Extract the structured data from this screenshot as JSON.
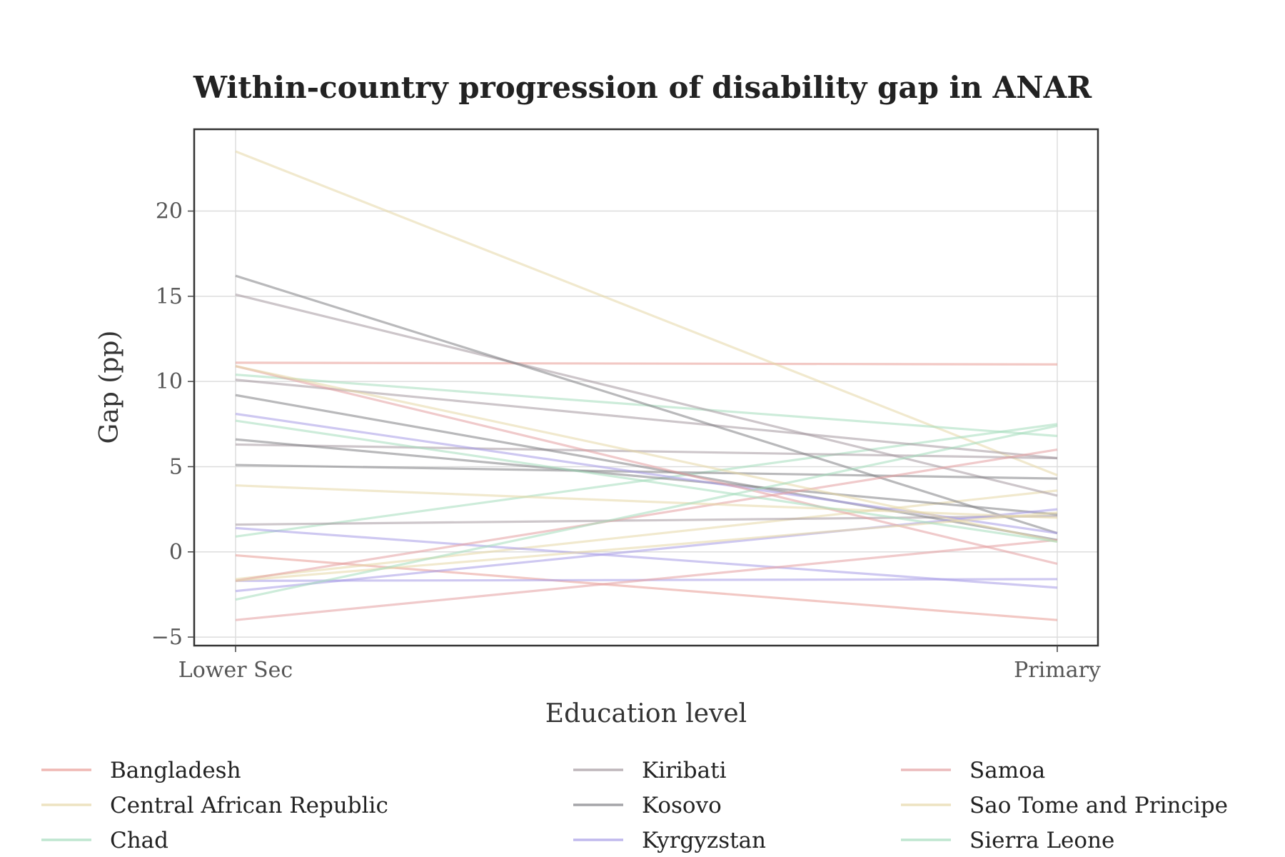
{
  "chart_data": {
    "type": "line",
    "title": "Within-country progression of disability gap in ANAR",
    "xlabel": "Education level",
    "ylabel": "Gap (pp)",
    "categories": [
      "Lower Sec",
      "Primary"
    ],
    "ylim": [
      -5.5,
      24.8
    ],
    "yticks": [
      -5,
      0,
      5,
      10,
      15,
      20
    ],
    "ytick_labels": [
      "−5",
      "0",
      "5",
      "10",
      "15",
      "20"
    ],
    "grid": true,
    "legend_position": "bottom",
    "legend_columns": 3,
    "series": [
      {
        "name": "Bangladesh",
        "color": "#e89a94",
        "lines": [
          [
            11.1,
            11.0
          ],
          [
            -0.2,
            -4.0
          ]
        ]
      },
      {
        "name": "Central African Republic",
        "color": "#e6d7a6",
        "lines": [
          [
            23.5,
            4.5
          ],
          [
            -1.6,
            3.6
          ]
        ]
      },
      {
        "name": "Chad",
        "color": "#a4dcbc",
        "lines": [
          [
            10.4,
            6.8
          ],
          [
            0.9,
            7.5
          ]
        ]
      },
      {
        "name": "Kiribati",
        "color": "#a4989e",
        "lines": [
          [
            15.1,
            3.3
          ],
          [
            10.1,
            5.5
          ],
          [
            6.3,
            5.5
          ],
          [
            1.6,
            2.1
          ]
        ]
      },
      {
        "name": "Kosovo",
        "color": "#7f7f84",
        "lines": [
          [
            16.2,
            1.1
          ],
          [
            9.2,
            0.7
          ],
          [
            6.6,
            2.2
          ],
          [
            5.1,
            4.3
          ]
        ]
      },
      {
        "name": "Kyrgyzstan",
        "color": "#a59be6",
        "lines": [
          [
            8.1,
            1.1
          ],
          [
            1.4,
            -2.1
          ],
          [
            -2.3,
            2.5
          ],
          [
            -1.7,
            -1.6
          ]
        ]
      },
      {
        "name": "Samoa",
        "color": "#e39ea0",
        "lines": [
          [
            10.9,
            -0.7
          ],
          [
            -1.7,
            6.0
          ],
          [
            -4.0,
            0.7
          ]
        ]
      },
      {
        "name": "Sao Tome and Principe",
        "color": "#e6d7a6",
        "lines": [
          [
            10.9,
            0.6
          ],
          [
            3.9,
            2.0
          ],
          [
            -1.7,
            2.3
          ]
        ]
      },
      {
        "name": "Sierra Leone",
        "color": "#a4dcbc",
        "lines": [
          [
            7.7,
            0.6
          ],
          [
            -2.8,
            7.4
          ]
        ]
      }
    ]
  }
}
